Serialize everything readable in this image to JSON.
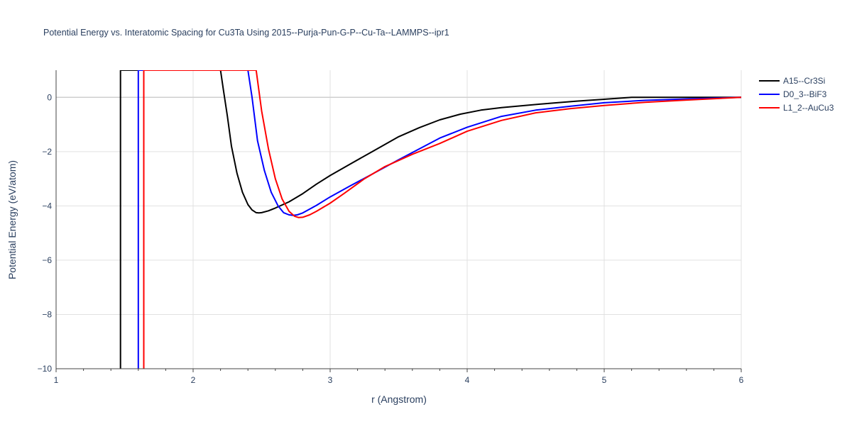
{
  "chart_data": {
    "type": "line",
    "title": "Potential Energy vs. Interatomic Spacing for Cu3Ta Using 2015--Purja-Pun-G-P--Cu-Ta--LAMMPS--ipr1",
    "xlabel": "r (Angstrom)",
    "ylabel": "Potential Energy (eV/atom)",
    "xlim": [
      1,
      6
    ],
    "ylim": [
      -10,
      1
    ],
    "xticks": [
      1,
      2,
      3,
      4,
      5,
      6
    ],
    "xtick_labels": [
      "1",
      "2",
      "3",
      "4",
      "5",
      "6"
    ],
    "yticks": [
      0,
      -2,
      -4,
      -6,
      -8,
      -10
    ],
    "ytick_labels": [
      "0",
      "−2",
      "−4",
      "−6",
      "−8",
      "−10"
    ],
    "grid": true,
    "legend_position": "top-right",
    "series": [
      {
        "name": "A15--Cr3Si",
        "color": "#000000",
        "x": [
          1.47,
          1.47,
          2.2,
          2.22,
          2.25,
          2.28,
          2.32,
          2.36,
          2.4,
          2.43,
          2.46,
          2.48,
          2.5,
          2.55,
          2.6,
          2.7,
          2.8,
          2.9,
          3.0,
          3.15,
          3.3,
          3.5,
          3.65,
          3.8,
          3.95,
          4.1,
          4.25,
          4.4,
          4.6,
          4.8,
          5.0,
          5.2,
          5.4,
          5.6,
          5.8,
          6.0
        ],
        "y": [
          -10,
          1,
          1,
          0.3,
          -0.7,
          -1.8,
          -2.8,
          -3.5,
          -3.95,
          -4.15,
          -4.25,
          -4.26,
          -4.25,
          -4.18,
          -4.08,
          -3.85,
          -3.55,
          -3.2,
          -2.88,
          -2.45,
          -2.02,
          -1.45,
          -1.12,
          -0.83,
          -0.62,
          -0.47,
          -0.38,
          -0.31,
          -0.22,
          -0.14,
          -0.07,
          0,
          0,
          0,
          0,
          0
        ]
      },
      {
        "name": "D0_3--BiF3",
        "color": "#0000ff",
        "x": [
          1.6,
          1.6,
          2.4,
          2.43,
          2.47,
          2.52,
          2.57,
          2.62,
          2.66,
          2.7,
          2.73,
          2.76,
          2.8,
          2.9,
          3.0,
          3.15,
          3.3,
          3.5,
          3.65,
          3.8,
          4.0,
          4.25,
          4.5,
          4.75,
          5.0,
          5.3,
          5.6,
          6.0
        ],
        "y": [
          -10,
          1,
          1,
          0,
          -1.6,
          -2.7,
          -3.5,
          -4.0,
          -4.25,
          -4.33,
          -4.35,
          -4.33,
          -4.26,
          -3.98,
          -3.67,
          -3.25,
          -2.85,
          -2.3,
          -1.9,
          -1.5,
          -1.1,
          -0.7,
          -0.47,
          -0.33,
          -0.2,
          -0.11,
          -0.06,
          0
        ]
      },
      {
        "name": "L1_2--AuCu3",
        "color": "#ff0000",
        "x": [
          1.64,
          1.64,
          2.46,
          2.5,
          2.55,
          2.6,
          2.65,
          2.7,
          2.74,
          2.77,
          2.8,
          2.85,
          2.9,
          3.0,
          3.1,
          3.25,
          3.4,
          3.6,
          3.8,
          4.0,
          4.25,
          4.5,
          4.75,
          5.0,
          5.3,
          5.6,
          6.0
        ],
        "y": [
          -10,
          1,
          1,
          -0.5,
          -1.9,
          -3.0,
          -3.75,
          -4.2,
          -4.38,
          -4.43,
          -4.42,
          -4.33,
          -4.2,
          -3.9,
          -3.55,
          -3.0,
          -2.55,
          -2.1,
          -1.7,
          -1.25,
          -0.85,
          -0.57,
          -0.42,
          -0.3,
          -0.18,
          -0.1,
          0
        ]
      }
    ]
  }
}
